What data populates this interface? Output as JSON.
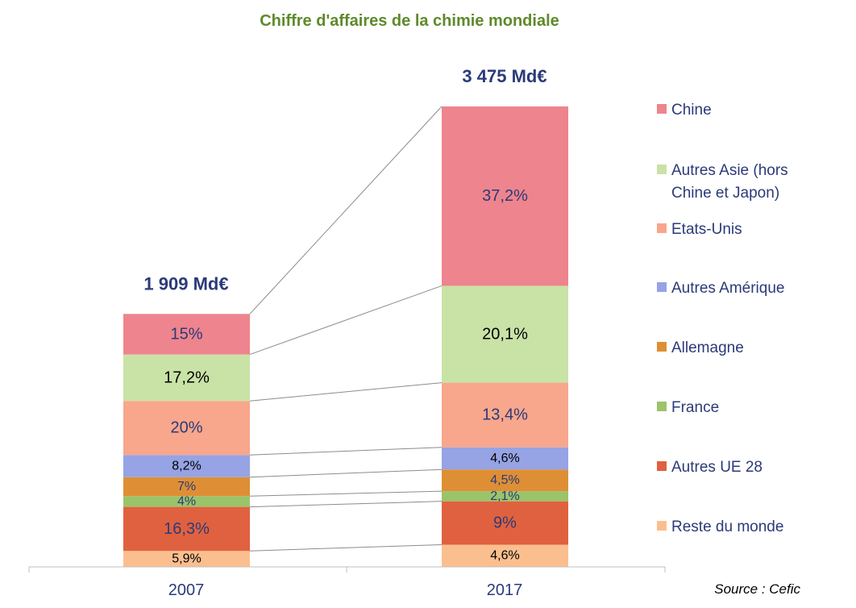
{
  "chart_data": {
    "type": "bar",
    "stacked": true,
    "normalized": "percent",
    "title": "Chiffre d'affaires de la chimie mondiale",
    "categories": [
      "2007",
      "2017"
    ],
    "totals": [
      {
        "label": "1 909 Md€",
        "value": 1909
      },
      {
        "label": "3 475 Md€",
        "value": 3475
      }
    ],
    "series": [
      {
        "name": "Reste du monde",
        "color": "#fbbf8f",
        "values": [
          5.9,
          4.6
        ],
        "labels": [
          "5,9%",
          "4,6%"
        ],
        "label_color": "#000000"
      },
      {
        "name": "Autres UE 28",
        "color": "#e0613f",
        "values": [
          16.3,
          9.0
        ],
        "labels": [
          "16,3%",
          "9%"
        ],
        "label_color": "#2c3a78"
      },
      {
        "name": "France",
        "color": "#9bc36a",
        "values": [
          4.0,
          2.1
        ],
        "labels": [
          "4%",
          "2,1%"
        ],
        "label_color": "#2c3a78"
      },
      {
        "name": "Allemagne",
        "color": "#de8f35",
        "values": [
          7.0,
          4.5
        ],
        "labels": [
          "7%",
          "4,5%"
        ],
        "label_color": "#2c3a78"
      },
      {
        "name": "Autres Amérique",
        "color": "#96a3e4",
        "values": [
          8.2,
          4.6
        ],
        "labels": [
          "8,2%",
          "4,6%"
        ],
        "label_color": "#000000"
      },
      {
        "name": "Etats-Unis",
        "color": "#f8a68c",
        "values": [
          20.0,
          13.4
        ],
        "labels": [
          "20%",
          "13,4%"
        ],
        "label_color": "#2c3a78"
      },
      {
        "name": "Autres Asie (hors Chine et Japon)",
        "color": "#c9e2a6",
        "values": [
          17.2,
          20.1
        ],
        "labels": [
          "17,2%",
          "20,1%"
        ],
        "label_color": "#000000"
      },
      {
        "name": "Chine",
        "color": "#ee848d",
        "values": [
          15.0,
          37.2
        ],
        "labels": [
          "15%",
          "37,2%"
        ],
        "label_color": "#2c3a78"
      }
    ],
    "legend": [
      {
        "lines": [
          "Chine"
        ],
        "color": "#ee848d"
      },
      {
        "lines": [
          "Autres Asie (hors",
          "Chine et Japon)"
        ],
        "color": "#c9e2a6"
      },
      {
        "lines": [
          "Etats-Unis"
        ],
        "color": "#f8a68c"
      },
      {
        "lines": [
          "Autres Amérique"
        ],
        "color": "#96a3e4"
      },
      {
        "lines": [
          "Allemagne"
        ],
        "color": "#de8f35"
      },
      {
        "lines": [
          "France"
        ],
        "color": "#9bc36a"
      },
      {
        "lines": [
          "Autres UE 28"
        ],
        "color": "#e0613f"
      },
      {
        "lines": [
          "Reste du monde"
        ],
        "color": "#fbbf8f"
      }
    ],
    "legend_placement": "right",
    "grid": false,
    "source": "Source : Cefic"
  }
}
